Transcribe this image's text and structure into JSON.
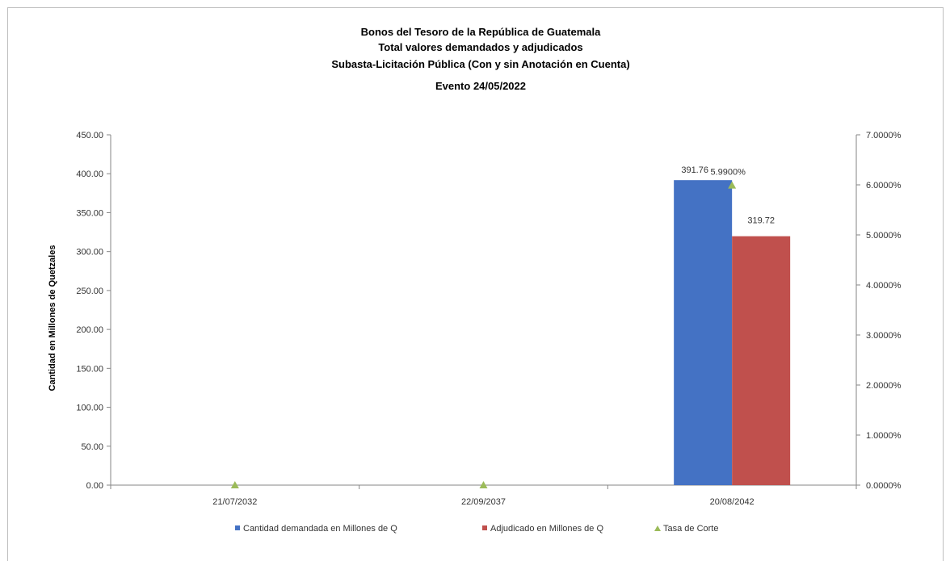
{
  "chart_data": {
    "type": "bar",
    "title_lines": [
      "Bonos del Tesoro de la República de Guatemala",
      "Total valores demandados y adjudicados",
      "Subasta-Licitación Pública (Con y sin Anotación en Cuenta)",
      "Evento 24/05/2022"
    ],
    "ylabel": "Cantidad en Millones de Quetzales",
    "categories": [
      "21/07/2032",
      "22/09/2037",
      "20/08/2042"
    ],
    "series": [
      {
        "name": "Cantidad demandada en Millones de Q",
        "type": "bar",
        "axis": "left",
        "color": "#4472c4",
        "values": [
          0,
          0,
          391.76
        ],
        "labels": [
          "",
          "",
          "391.76"
        ]
      },
      {
        "name": "Adjudicado en Millones de Q",
        "type": "bar",
        "axis": "left",
        "color": "#c0504d",
        "values": [
          0,
          0,
          319.72
        ],
        "labels": [
          "",
          "",
          "319.72"
        ]
      },
      {
        "name": "Tasa de Corte",
        "type": "scatter",
        "marker": "triangle",
        "axis": "right",
        "color": "#9bbb59",
        "values": [
          0,
          0,
          0.0599
        ],
        "labels": [
          "",
          "",
          "5.9900%"
        ]
      }
    ],
    "y_left": {
      "min": 0,
      "max": 450,
      "step": 50,
      "ticks": [
        "0.00",
        "50.00",
        "100.00",
        "150.00",
        "200.00",
        "250.00",
        "300.00",
        "350.00",
        "400.00",
        "450.00"
      ]
    },
    "y_right": {
      "min": 0,
      "max": 0.07,
      "step": 0.01,
      "ticks": [
        "0.0000%",
        "1.0000%",
        "2.0000%",
        "3.0000%",
        "4.0000%",
        "5.0000%",
        "6.0000%",
        "7.0000%"
      ]
    },
    "grid": false,
    "legend_position": "bottom"
  }
}
